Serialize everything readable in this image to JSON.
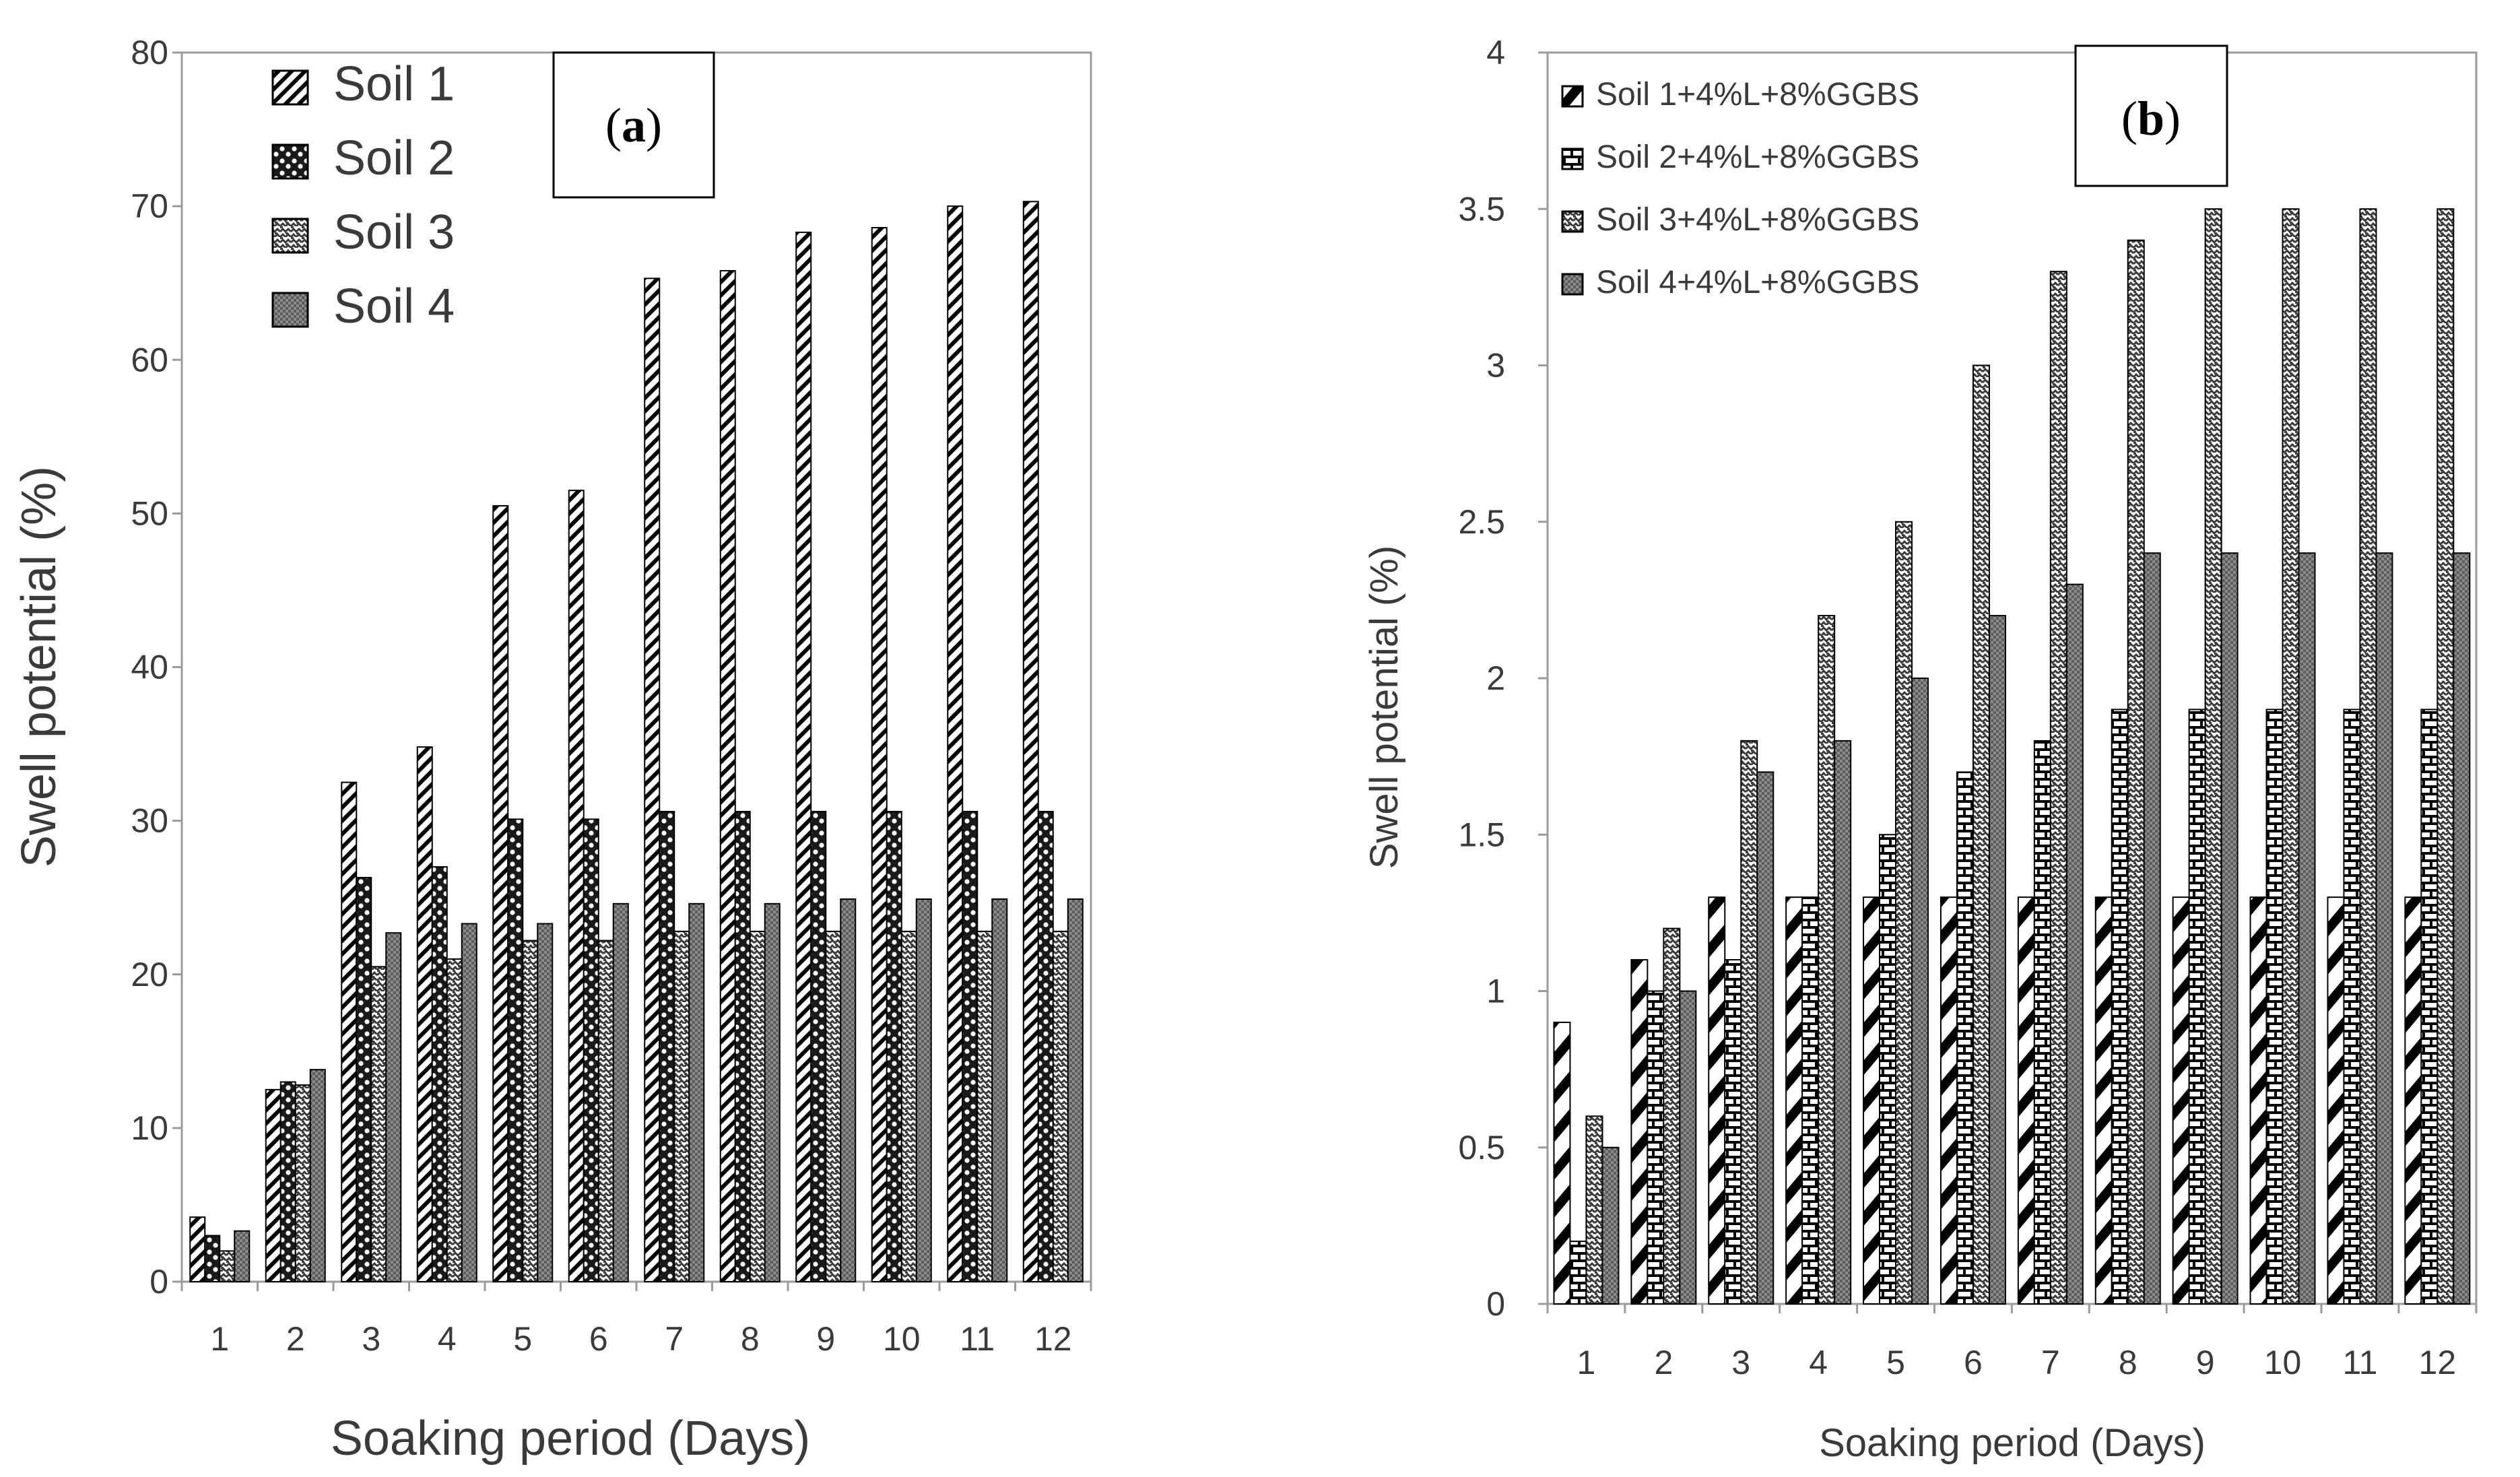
{
  "chart_data": [
    {
      "type": "bar",
      "panel_label": "a",
      "title": "",
      "xlabel": "Soaking period (Days)",
      "ylabel": "Swell potential (%)",
      "ylim": [
        0,
        80
      ],
      "yticks": [
        "0",
        "10",
        "20",
        "30",
        "40",
        "50",
        "60",
        "70",
        "80"
      ],
      "categories": [
        "1",
        "2",
        "3",
        "4",
        "5",
        "6",
        "7",
        "8",
        "9",
        "10",
        "11",
        "12"
      ],
      "legend_position": "top-left",
      "series": [
        {
          "name": "Soil 1",
          "pattern": "diag",
          "values": [
            4.2,
            12.5,
            32.5,
            34.8,
            50.5,
            51.5,
            65.3,
            65.8,
            68.3,
            68.6,
            70.0,
            70.3
          ]
        },
        {
          "name": "Soil 2",
          "pattern": "dots",
          "values": [
            3.0,
            13.0,
            26.3,
            27.0,
            30.1,
            30.1,
            30.6,
            30.6,
            30.6,
            30.6,
            30.6,
            30.6
          ]
        },
        {
          "name": "Soil 3",
          "pattern": "check",
          "values": [
            2.0,
            12.8,
            20.5,
            21.0,
            22.2,
            22.2,
            22.8,
            22.8,
            22.8,
            22.8,
            22.8,
            22.8
          ]
        },
        {
          "name": "Soil 4",
          "pattern": "grid",
          "values": [
            3.3,
            13.8,
            22.7,
            23.3,
            23.3,
            24.6,
            24.6,
            24.6,
            24.9,
            24.9,
            24.9,
            24.9
          ]
        }
      ]
    },
    {
      "type": "bar",
      "panel_label": "b",
      "title": "",
      "xlabel": "Soaking period (Days)",
      "ylabel": "Swell potential (%)",
      "ylim": [
        0,
        4
      ],
      "yticks": [
        "0",
        "0.5",
        "1",
        "1.5",
        "2",
        "2.5",
        "3",
        "3.5",
        "4"
      ],
      "categories": [
        "1",
        "2",
        "3",
        "4",
        "5",
        "6",
        "7",
        "8",
        "9",
        "10",
        "11",
        "12"
      ],
      "legend_position": "top-left",
      "series": [
        {
          "name": "Soil 1+4%L+8%GGBS",
          "pattern": "diag-wide",
          "values": [
            0.9,
            1.1,
            1.3,
            1.3,
            1.3,
            1.3,
            1.3,
            1.3,
            1.3,
            1.3,
            1.3,
            1.3
          ]
        },
        {
          "name": "Soil 2+4%L+8%GGBS",
          "pattern": "bricks",
          "values": [
            0.2,
            1.0,
            1.1,
            1.3,
            1.5,
            1.7,
            1.8,
            1.9,
            1.9,
            1.9,
            1.9,
            1.9
          ]
        },
        {
          "name": "Soil 3+4%L+8%GGBS",
          "pattern": "check",
          "values": [
            0.6,
            1.2,
            1.8,
            2.2,
            2.5,
            3.0,
            3.3,
            3.4,
            3.5,
            3.5,
            3.5,
            3.5
          ]
        },
        {
          "name": "Soil 4+4%L+8%GGBS",
          "pattern": "grid",
          "values": [
            0.5,
            1.0,
            1.7,
            1.8,
            2.0,
            2.2,
            2.3,
            2.4,
            2.4,
            2.4,
            2.4,
            2.4
          ]
        }
      ]
    }
  ]
}
